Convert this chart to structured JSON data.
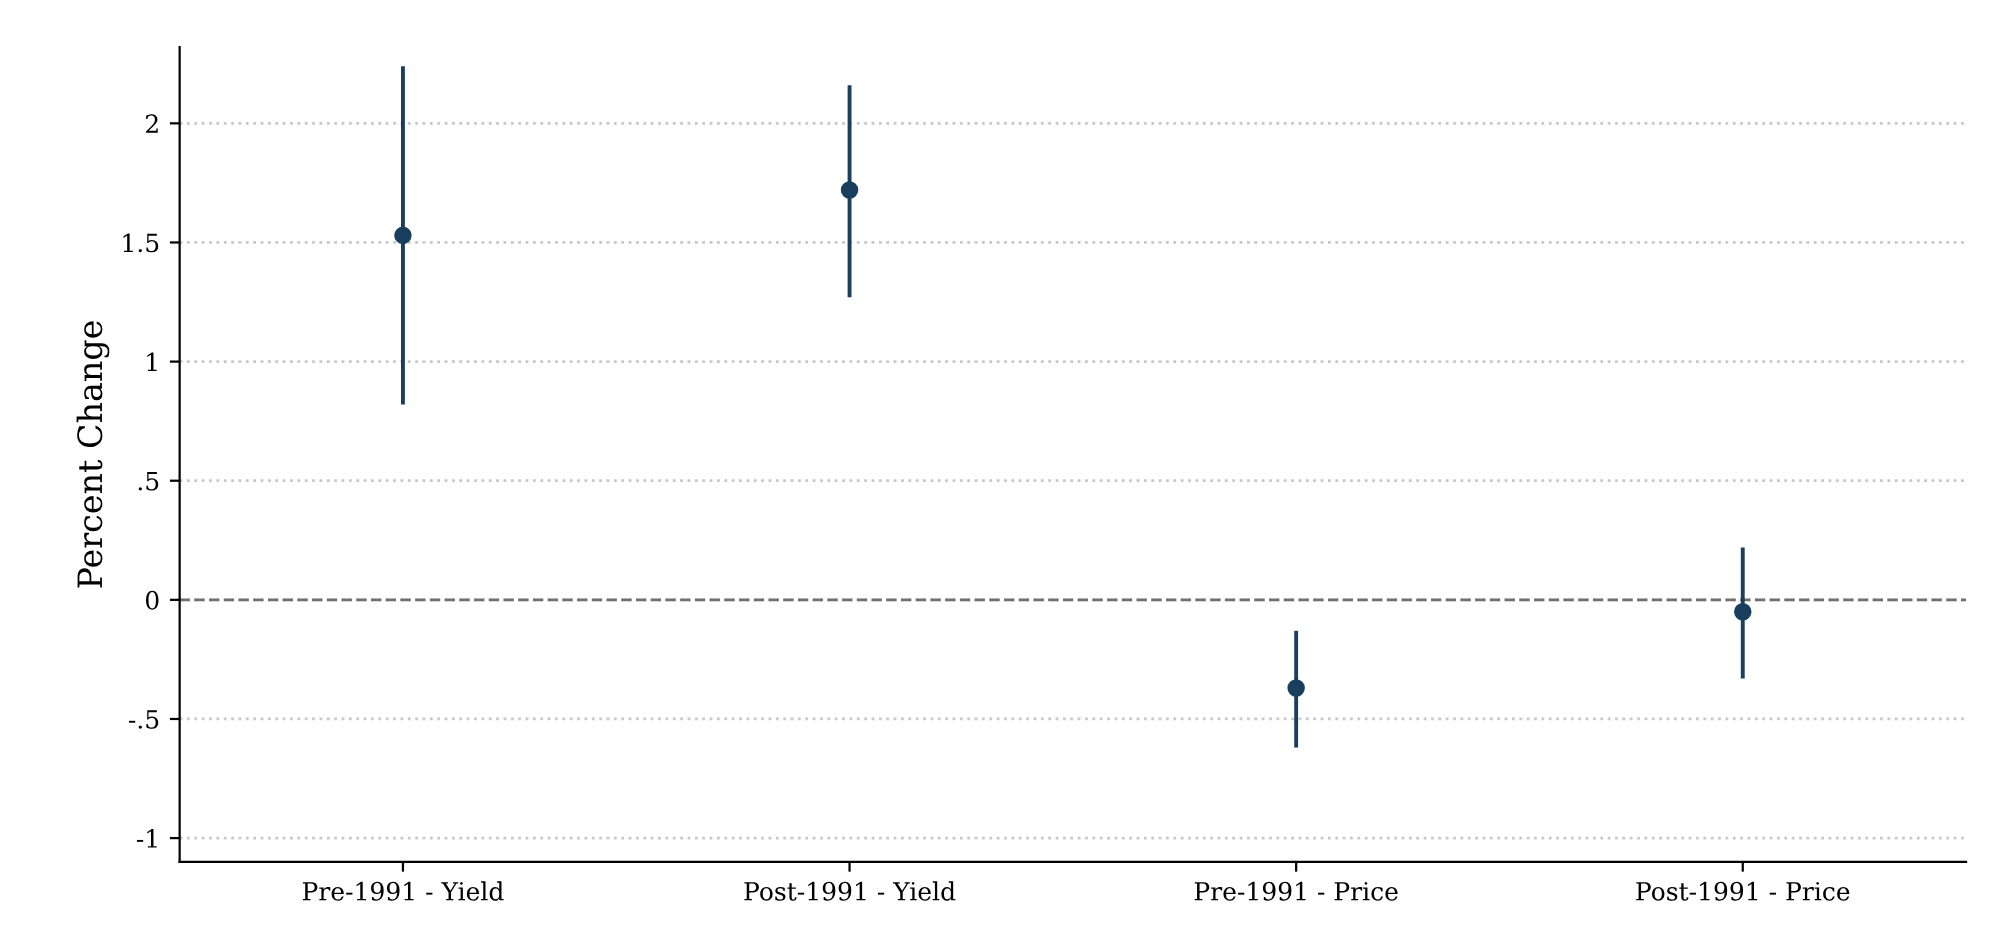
{
  "chart_data": {
    "type": "scatter",
    "ylabel": "Percent Change",
    "categories": [
      "Pre-1991 - Yield",
      "Post-1991 - Yield",
      "Pre-1991 - Price",
      "Post-1991 - Price"
    ],
    "series": [
      {
        "color": "#1a3e5e",
        "values": [
          1.53,
          1.72,
          -0.37,
          -0.05
        ],
        "errors": [
          [
            0.82,
            2.24
          ],
          [
            1.27,
            2.16
          ],
          [
            -0.62,
            -0.13
          ],
          [
            -0.33,
            0.22
          ]
        ]
      }
    ],
    "ylim": [
      -1.1,
      2.32
    ],
    "yticks": [
      {
        "value": -1,
        "label": "-1"
      },
      {
        "value": -0.5,
        "label": "-.5"
      },
      0,
      {
        "value": 0.5,
        "label": ".5"
      },
      1,
      {
        "value": 1.5,
        "label": "1.5"
      },
      2
    ],
    "grid": "y",
    "marker": "circle",
    "ref_lines": [
      {
        "axis": "y",
        "value": 0,
        "color": "#707070",
        "line_style": "dashed"
      }
    ]
  }
}
